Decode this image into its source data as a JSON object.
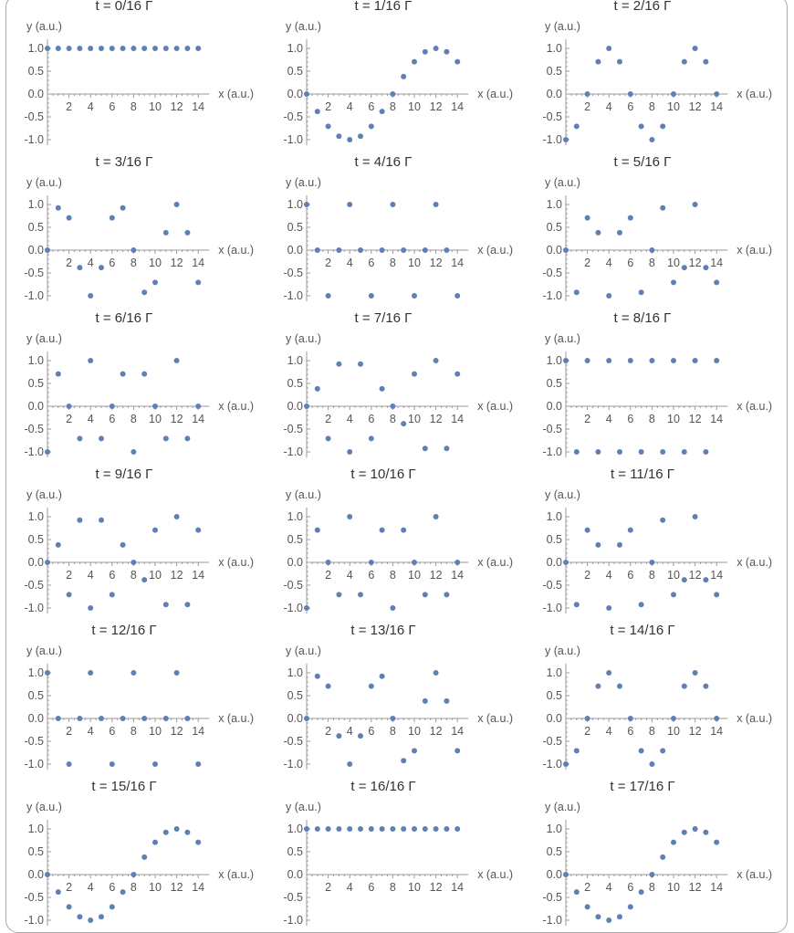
{
  "chart_data": {
    "type": "scatter",
    "layout": "grid",
    "columns": 3,
    "xlabel": "x (a.u.)",
    "ylabel": "y (a.u.)",
    "xlim": [
      0,
      14
    ],
    "ylim": [
      -1,
      1
    ],
    "x_ticks": [
      "2",
      "4",
      "6",
      "8",
      "10",
      "12",
      "14"
    ],
    "y_ticks": [
      "1.0",
      "0.5",
      "0.0",
      "-0.5",
      "-1.0"
    ],
    "point_color": "#5e81b5",
    "x": [
      0,
      1,
      2,
      3,
      4,
      5,
      6,
      7,
      8,
      9,
      10,
      11,
      12,
      13,
      14
    ],
    "panels": [
      {
        "title": "t = 0/16 Γ",
        "y": [
          1,
          1,
          1,
          1,
          1,
          1,
          1,
          1,
          1,
          1,
          1,
          1,
          1,
          1,
          1
        ]
      },
      {
        "title": "t = 1/16 Γ",
        "y": [
          0,
          -0.383,
          -0.707,
          -0.924,
          -1,
          -0.924,
          -0.707,
          -0.383,
          0,
          0.383,
          0.707,
          0.924,
          1,
          0.924,
          0.707
        ]
      },
      {
        "title": "t = 2/16 Γ",
        "y": [
          -1,
          -0.707,
          0,
          0.707,
          1,
          0.707,
          0,
          -0.707,
          -1,
          -0.707,
          0,
          0.707,
          1,
          0.707,
          0
        ]
      },
      {
        "title": "t = 3/16 Γ",
        "y": [
          0,
          0.924,
          0.707,
          -0.383,
          -1,
          -0.383,
          0.707,
          0.924,
          0,
          -0.924,
          -0.707,
          0.383,
          1,
          0.383,
          -0.707
        ]
      },
      {
        "title": "t = 4/16 Γ",
        "y": [
          1,
          0,
          -1,
          0,
          1,
          0,
          -1,
          0,
          1,
          0,
          -1,
          0,
          1,
          0,
          -1
        ]
      },
      {
        "title": "t = 5/16 Γ",
        "y": [
          0,
          -0.924,
          0.707,
          0.383,
          -1,
          0.383,
          0.707,
          -0.924,
          0,
          0.924,
          -0.707,
          -0.383,
          1,
          -0.383,
          -0.707
        ]
      },
      {
        "title": "t = 6/16 Γ",
        "y": [
          -1,
          0.707,
          0,
          -0.707,
          1,
          -0.707,
          0,
          0.707,
          -1,
          0.707,
          0,
          -0.707,
          1,
          -0.707,
          0
        ]
      },
      {
        "title": "t = 7/16 Γ",
        "y": [
          0,
          0.383,
          -0.707,
          0.924,
          -1,
          0.924,
          -0.707,
          0.383,
          0,
          -0.383,
          0.707,
          -0.924,
          1,
          -0.924,
          0.707
        ]
      },
      {
        "title": "t = 8/16 Γ",
        "y": [
          1,
          -1,
          1,
          -1,
          1,
          -1,
          1,
          -1,
          1,
          -1,
          1,
          -1,
          1,
          -1,
          1
        ]
      },
      {
        "title": "t = 9/16 Γ",
        "y": [
          0,
          0.383,
          -0.707,
          0.924,
          -1,
          0.924,
          -0.707,
          0.383,
          0,
          -0.383,
          0.707,
          -0.924,
          1,
          -0.924,
          0.707
        ]
      },
      {
        "title": "t = 10/16 Γ",
        "y": [
          -1,
          0.707,
          0,
          -0.707,
          1,
          -0.707,
          0,
          0.707,
          -1,
          0.707,
          0,
          -0.707,
          1,
          -0.707,
          0
        ]
      },
      {
        "title": "t = 11/16 Γ",
        "y": [
          0,
          -0.924,
          0.707,
          0.383,
          -1,
          0.383,
          0.707,
          -0.924,
          0,
          0.924,
          -0.707,
          -0.383,
          1,
          -0.383,
          -0.707
        ]
      },
      {
        "title": "t = 12/16 Γ",
        "y": [
          1,
          0,
          -1,
          0,
          1,
          0,
          -1,
          0,
          1,
          0,
          -1,
          0,
          1,
          0,
          -1
        ]
      },
      {
        "title": "t = 13/16 Γ",
        "y": [
          0,
          0.924,
          0.707,
          -0.383,
          -1,
          -0.383,
          0.707,
          0.924,
          0,
          -0.924,
          -0.707,
          0.383,
          1,
          0.383,
          -0.707
        ]
      },
      {
        "title": "t = 14/16 Γ",
        "y": [
          -1,
          -0.707,
          0,
          0.707,
          1,
          0.707,
          0,
          -0.707,
          -1,
          -0.707,
          0,
          0.707,
          1,
          0.707,
          0
        ]
      },
      {
        "title": "t = 15/16 Γ",
        "y": [
          0,
          -0.383,
          -0.707,
          -0.924,
          -1,
          -0.924,
          -0.707,
          -0.383,
          0,
          0.383,
          0.707,
          0.924,
          1,
          0.924,
          0.707
        ]
      },
      {
        "title": "t = 16/16 Γ",
        "y": [
          1,
          1,
          1,
          1,
          1,
          1,
          1,
          1,
          1,
          1,
          1,
          1,
          1,
          1,
          1
        ]
      },
      {
        "title": "t = 17/16 Γ",
        "y": [
          0,
          -0.383,
          -0.707,
          -0.924,
          -1,
          -0.924,
          -0.707,
          -0.383,
          0,
          0.383,
          0.707,
          0.924,
          1,
          0.924,
          0.707
        ]
      }
    ]
  }
}
